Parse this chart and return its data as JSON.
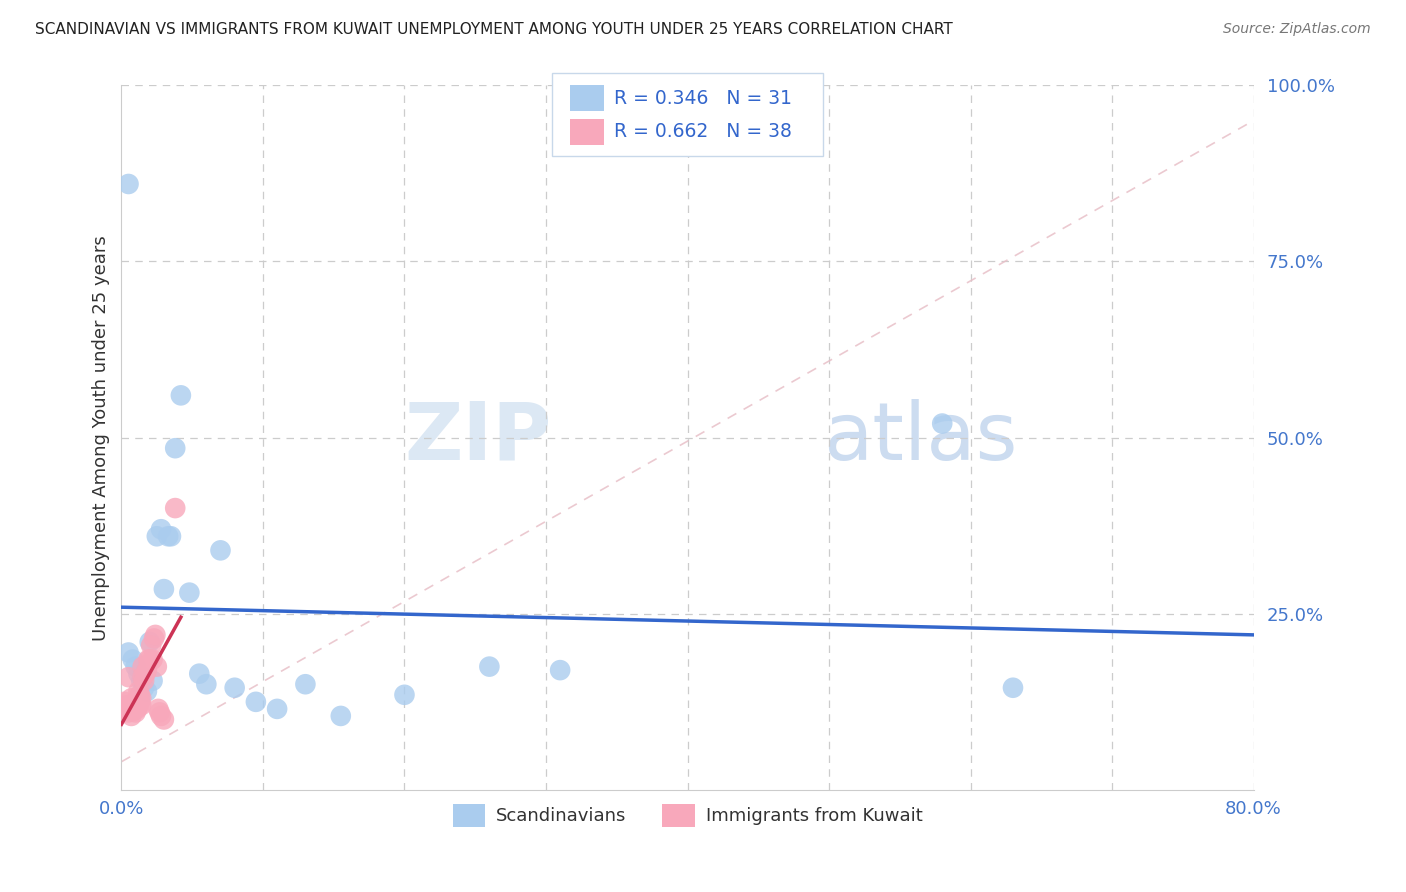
{
  "title": "SCANDINAVIAN VS IMMIGRANTS FROM KUWAIT UNEMPLOYMENT AMONG YOUTH UNDER 25 YEARS CORRELATION CHART",
  "source": "Source: ZipAtlas.com",
  "ylabel": "Unemployment Among Youth under 25 years",
  "xlim": [
    0,
    0.8
  ],
  "ylim": [
    0,
    1.0
  ],
  "legend_r1": "R = 0.346",
  "legend_n1": "N = 31",
  "legend_r2": "R = 0.662",
  "legend_n2": "N = 38",
  "scandinavian_color": "#aaccee",
  "kuwait_color": "#f8a8bb",
  "trendline_blue_color": "#3366cc",
  "trendline_pink_color": "#cc3355",
  "trendline_dashed_color": "#d8c8c8",
  "scand_x": [
    0.005,
    0.008,
    0.01,
    0.012,
    0.014,
    0.016,
    0.018,
    0.02,
    0.022,
    0.025,
    0.028,
    0.03,
    0.033,
    0.035,
    0.038,
    0.042,
    0.048,
    0.055,
    0.06,
    0.07,
    0.08,
    0.095,
    0.11,
    0.13,
    0.155,
    0.2,
    0.26,
    0.31,
    0.58,
    0.63,
    0.005
  ],
  "scand_y": [
    0.195,
    0.185,
    0.175,
    0.165,
    0.155,
    0.145,
    0.14,
    0.21,
    0.155,
    0.36,
    0.37,
    0.285,
    0.36,
    0.36,
    0.485,
    0.56,
    0.28,
    0.165,
    0.15,
    0.34,
    0.145,
    0.125,
    0.115,
    0.15,
    0.105,
    0.135,
    0.175,
    0.17,
    0.52,
    0.145,
    0.86
  ],
  "kuwait_x": [
    0.002,
    0.003,
    0.004,
    0.005,
    0.005,
    0.006,
    0.007,
    0.007,
    0.008,
    0.008,
    0.009,
    0.01,
    0.01,
    0.011,
    0.011,
    0.012,
    0.012,
    0.013,
    0.013,
    0.014,
    0.014,
    0.015,
    0.015,
    0.016,
    0.017,
    0.018,
    0.019,
    0.02,
    0.021,
    0.022,
    0.023,
    0.024,
    0.025,
    0.026,
    0.027,
    0.028,
    0.03,
    0.038
  ],
  "kuwait_y": [
    0.125,
    0.12,
    0.115,
    0.16,
    0.11,
    0.12,
    0.105,
    0.13,
    0.118,
    0.112,
    0.115,
    0.125,
    0.11,
    0.12,
    0.115,
    0.14,
    0.118,
    0.135,
    0.125,
    0.13,
    0.12,
    0.175,
    0.16,
    0.155,
    0.165,
    0.17,
    0.185,
    0.185,
    0.205,
    0.185,
    0.215,
    0.22,
    0.175,
    0.115,
    0.11,
    0.105,
    0.1,
    0.4
  ]
}
